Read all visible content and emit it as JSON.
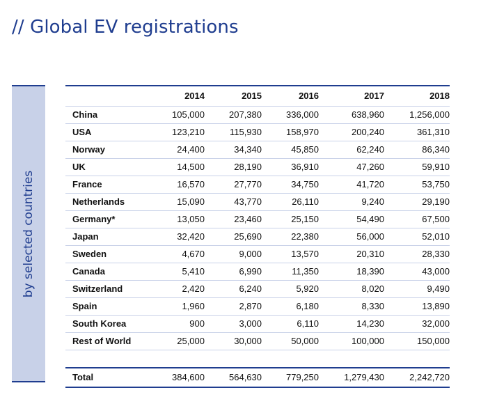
{
  "title": "// Global EV registrations",
  "side_label": "by selected countries",
  "years": [
    "2014",
    "2015",
    "2016",
    "2017",
    "2018"
  ],
  "rows": [
    {
      "country": "China",
      "values": [
        "105,000",
        "207,380",
        "336,000",
        "638,960",
        "1,256,000"
      ]
    },
    {
      "country": "USA",
      "values": [
        "123,210",
        "115,930",
        "158,970",
        "200,240",
        "361,310"
      ]
    },
    {
      "country": "Norway",
      "values": [
        "24,400",
        "34,340",
        "45,850",
        "62,240",
        "86,340"
      ]
    },
    {
      "country": "UK",
      "values": [
        "14,500",
        "28,190",
        "36,910",
        "47,260",
        "59,910"
      ]
    },
    {
      "country": "France",
      "values": [
        "16,570",
        "27,770",
        "34,750",
        "41,720",
        "53,750"
      ]
    },
    {
      "country": "Netherlands",
      "values": [
        "15,090",
        "43,770",
        "26,110",
        "9,240",
        "29,190"
      ]
    },
    {
      "country": "Germany*",
      "values": [
        "13,050",
        "23,460",
        "25,150",
        "54,490",
        "67,500"
      ]
    },
    {
      "country": "Japan",
      "values": [
        "32,420",
        "25,690",
        "22,380",
        "56,000",
        "52,010"
      ]
    },
    {
      "country": "Sweden",
      "values": [
        "4,670",
        "9,000",
        "13,570",
        "20,310",
        "28,330"
      ]
    },
    {
      "country": "Canada",
      "values": [
        "5,410",
        "6,990",
        "11,350",
        "18,390",
        "43,000"
      ]
    },
    {
      "country": "Switzerland",
      "values": [
        "2,420",
        "6,240",
        "5,920",
        "8,020",
        "9,490"
      ]
    },
    {
      "country": "Spain",
      "values": [
        "1,960",
        "2,870",
        "6,180",
        "8,330",
        "13,890"
      ]
    },
    {
      "country": "South Korea",
      "values": [
        "900",
        "3,000",
        "6,110",
        "14,230",
        "32,000"
      ]
    },
    {
      "country": "Rest of World",
      "values": [
        "25,000",
        "30,000",
        "50,000",
        "100,000",
        "150,000"
      ]
    }
  ],
  "total": {
    "label": "Total",
    "values": [
      "384,600",
      "564,630",
      "779,250",
      "1,279,430",
      "2,242,720"
    ]
  },
  "colors": {
    "accent": "#1f3d8f",
    "panel": "#c8d1e8",
    "text": "#111111"
  }
}
